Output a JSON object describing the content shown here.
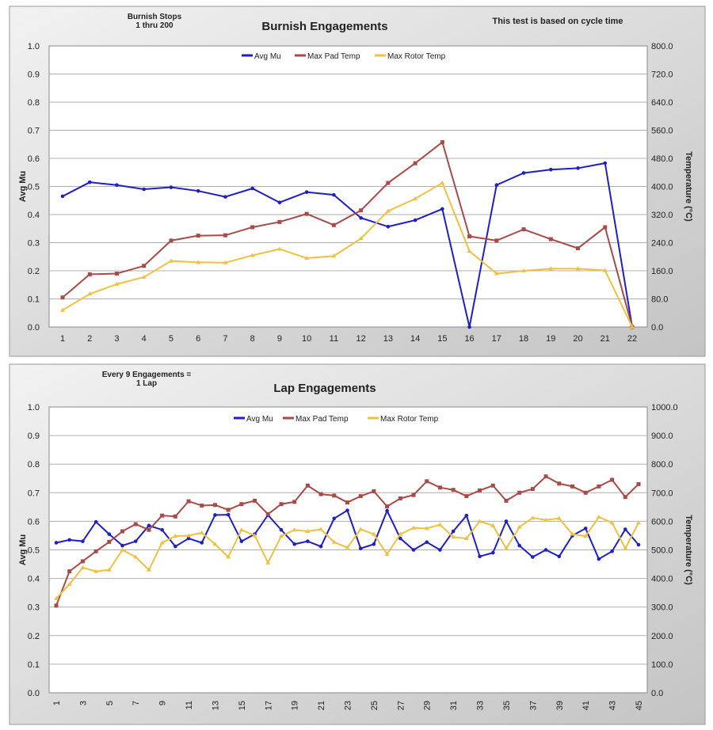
{
  "chart_data": [
    {
      "type": "line",
      "title": "Burnish Engagements",
      "annotation_left": [
        "Burnish Stops",
        "1  thru  200"
      ],
      "annotation_right": "This test is based on cycle time",
      "ylabel": "Avg Mu",
      "y2label": "Temperature (°C)",
      "ylim": [
        0,
        1
      ],
      "y2lim": [
        0,
        800
      ],
      "grid": true,
      "legend": "top-center",
      "categories": [
        1,
        2,
        3,
        4,
        5,
        6,
        7,
        8,
        9,
        10,
        11,
        12,
        13,
        14,
        15,
        16,
        17,
        18,
        19,
        20,
        21,
        22
      ],
      "series": [
        {
          "name": "Avg Mu",
          "axis": "left",
          "color": "#1f1fc8",
          "values": [
            0.465,
            0.515,
            0.505,
            0.49,
            0.497,
            0.484,
            0.463,
            0.493,
            0.443,
            0.48,
            0.47,
            0.388,
            0.357,
            0.38,
            0.42,
            0,
            0.505,
            0.548,
            0.56,
            0.565,
            0.583,
            0
          ]
        },
        {
          "name": "Max Pad Temp",
          "axis": "right",
          "color": "#a84a48",
          "values": [
            84,
            150,
            152,
            174,
            246,
            260,
            261,
            284,
            299,
            322,
            290,
            332,
            410,
            466,
            526,
            258,
            246,
            278,
            250,
            224,
            284,
            0
          ]
        },
        {
          "name": "Max Rotor Temp",
          "axis": "right",
          "color": "#f0c040",
          "values": [
            48,
            94,
            122,
            142,
            188,
            184,
            183,
            204,
            222,
            196,
            202,
            252,
            330,
            365,
            410,
            216,
            152,
            160,
            166,
            166,
            161,
            0
          ]
        }
      ]
    },
    {
      "type": "line",
      "title": "Lap Engagements",
      "annotation_left": [
        "Every 9 Engagements =",
        "1 Lap"
      ],
      "ylabel": "Avg Mu",
      "y2label": "Temperature (°C)",
      "ylim": [
        0,
        1
      ],
      "y2lim": [
        0,
        1000
      ],
      "grid": true,
      "legend": "top-center",
      "categories": [
        1,
        2,
        3,
        4,
        5,
        6,
        7,
        8,
        9,
        10,
        11,
        12,
        13,
        14,
        15,
        16,
        17,
        18,
        19,
        20,
        21,
        22,
        23,
        24,
        25,
        26,
        27,
        28,
        29,
        30,
        31,
        32,
        33,
        34,
        35,
        36,
        37,
        38,
        39,
        40,
        41,
        42,
        43,
        44,
        45
      ],
      "series": [
        {
          "name": "Avg Mu",
          "axis": "left",
          "color": "#1f1fc8",
          "values": [
            0.525,
            0.535,
            0.53,
            0.598,
            0.555,
            0.515,
            0.53,
            0.585,
            0.57,
            0.512,
            0.54,
            0.525,
            0.622,
            0.623,
            0.53,
            0.555,
            0.622,
            0.57,
            0.52,
            0.53,
            0.512,
            0.61,
            0.638,
            0.505,
            0.52,
            0.637,
            0.54,
            0.5,
            0.527,
            0.5,
            0.565,
            0.62,
            0.477,
            0.49,
            0.6,
            0.515,
            0.475,
            0.5,
            0.477,
            0.55,
            0.575,
            0.468,
            0.495,
            0.572,
            0.518
          ]
        },
        {
          "name": "Max Pad Temp",
          "axis": "right",
          "color": "#a84a48",
          "values": [
            305,
            425,
            460,
            495,
            528,
            565,
            590,
            570,
            620,
            617,
            670,
            655,
            657,
            640,
            660,
            672,
            625,
            660,
            668,
            725,
            695,
            690,
            666,
            688,
            705,
            652,
            680,
            692,
            740,
            718,
            710,
            688,
            708,
            725,
            672,
            700,
            713,
            757,
            732,
            722,
            700,
            722,
            745,
            685,
            730
          ]
        },
        {
          "name": "Max Rotor Temp",
          "axis": "right",
          "color": "#f0c040",
          "values": [
            330,
            380,
            438,
            425,
            430,
            500,
            475,
            430,
            525,
            548,
            550,
            560,
            520,
            475,
            570,
            550,
            455,
            548,
            570,
            565,
            572,
            527,
            508,
            572,
            555,
            485,
            555,
            577,
            575,
            588,
            545,
            540,
            600,
            585,
            505,
            580,
            612,
            605,
            610,
            555,
            548,
            615,
            595,
            505,
            595
          ]
        }
      ]
    }
  ]
}
